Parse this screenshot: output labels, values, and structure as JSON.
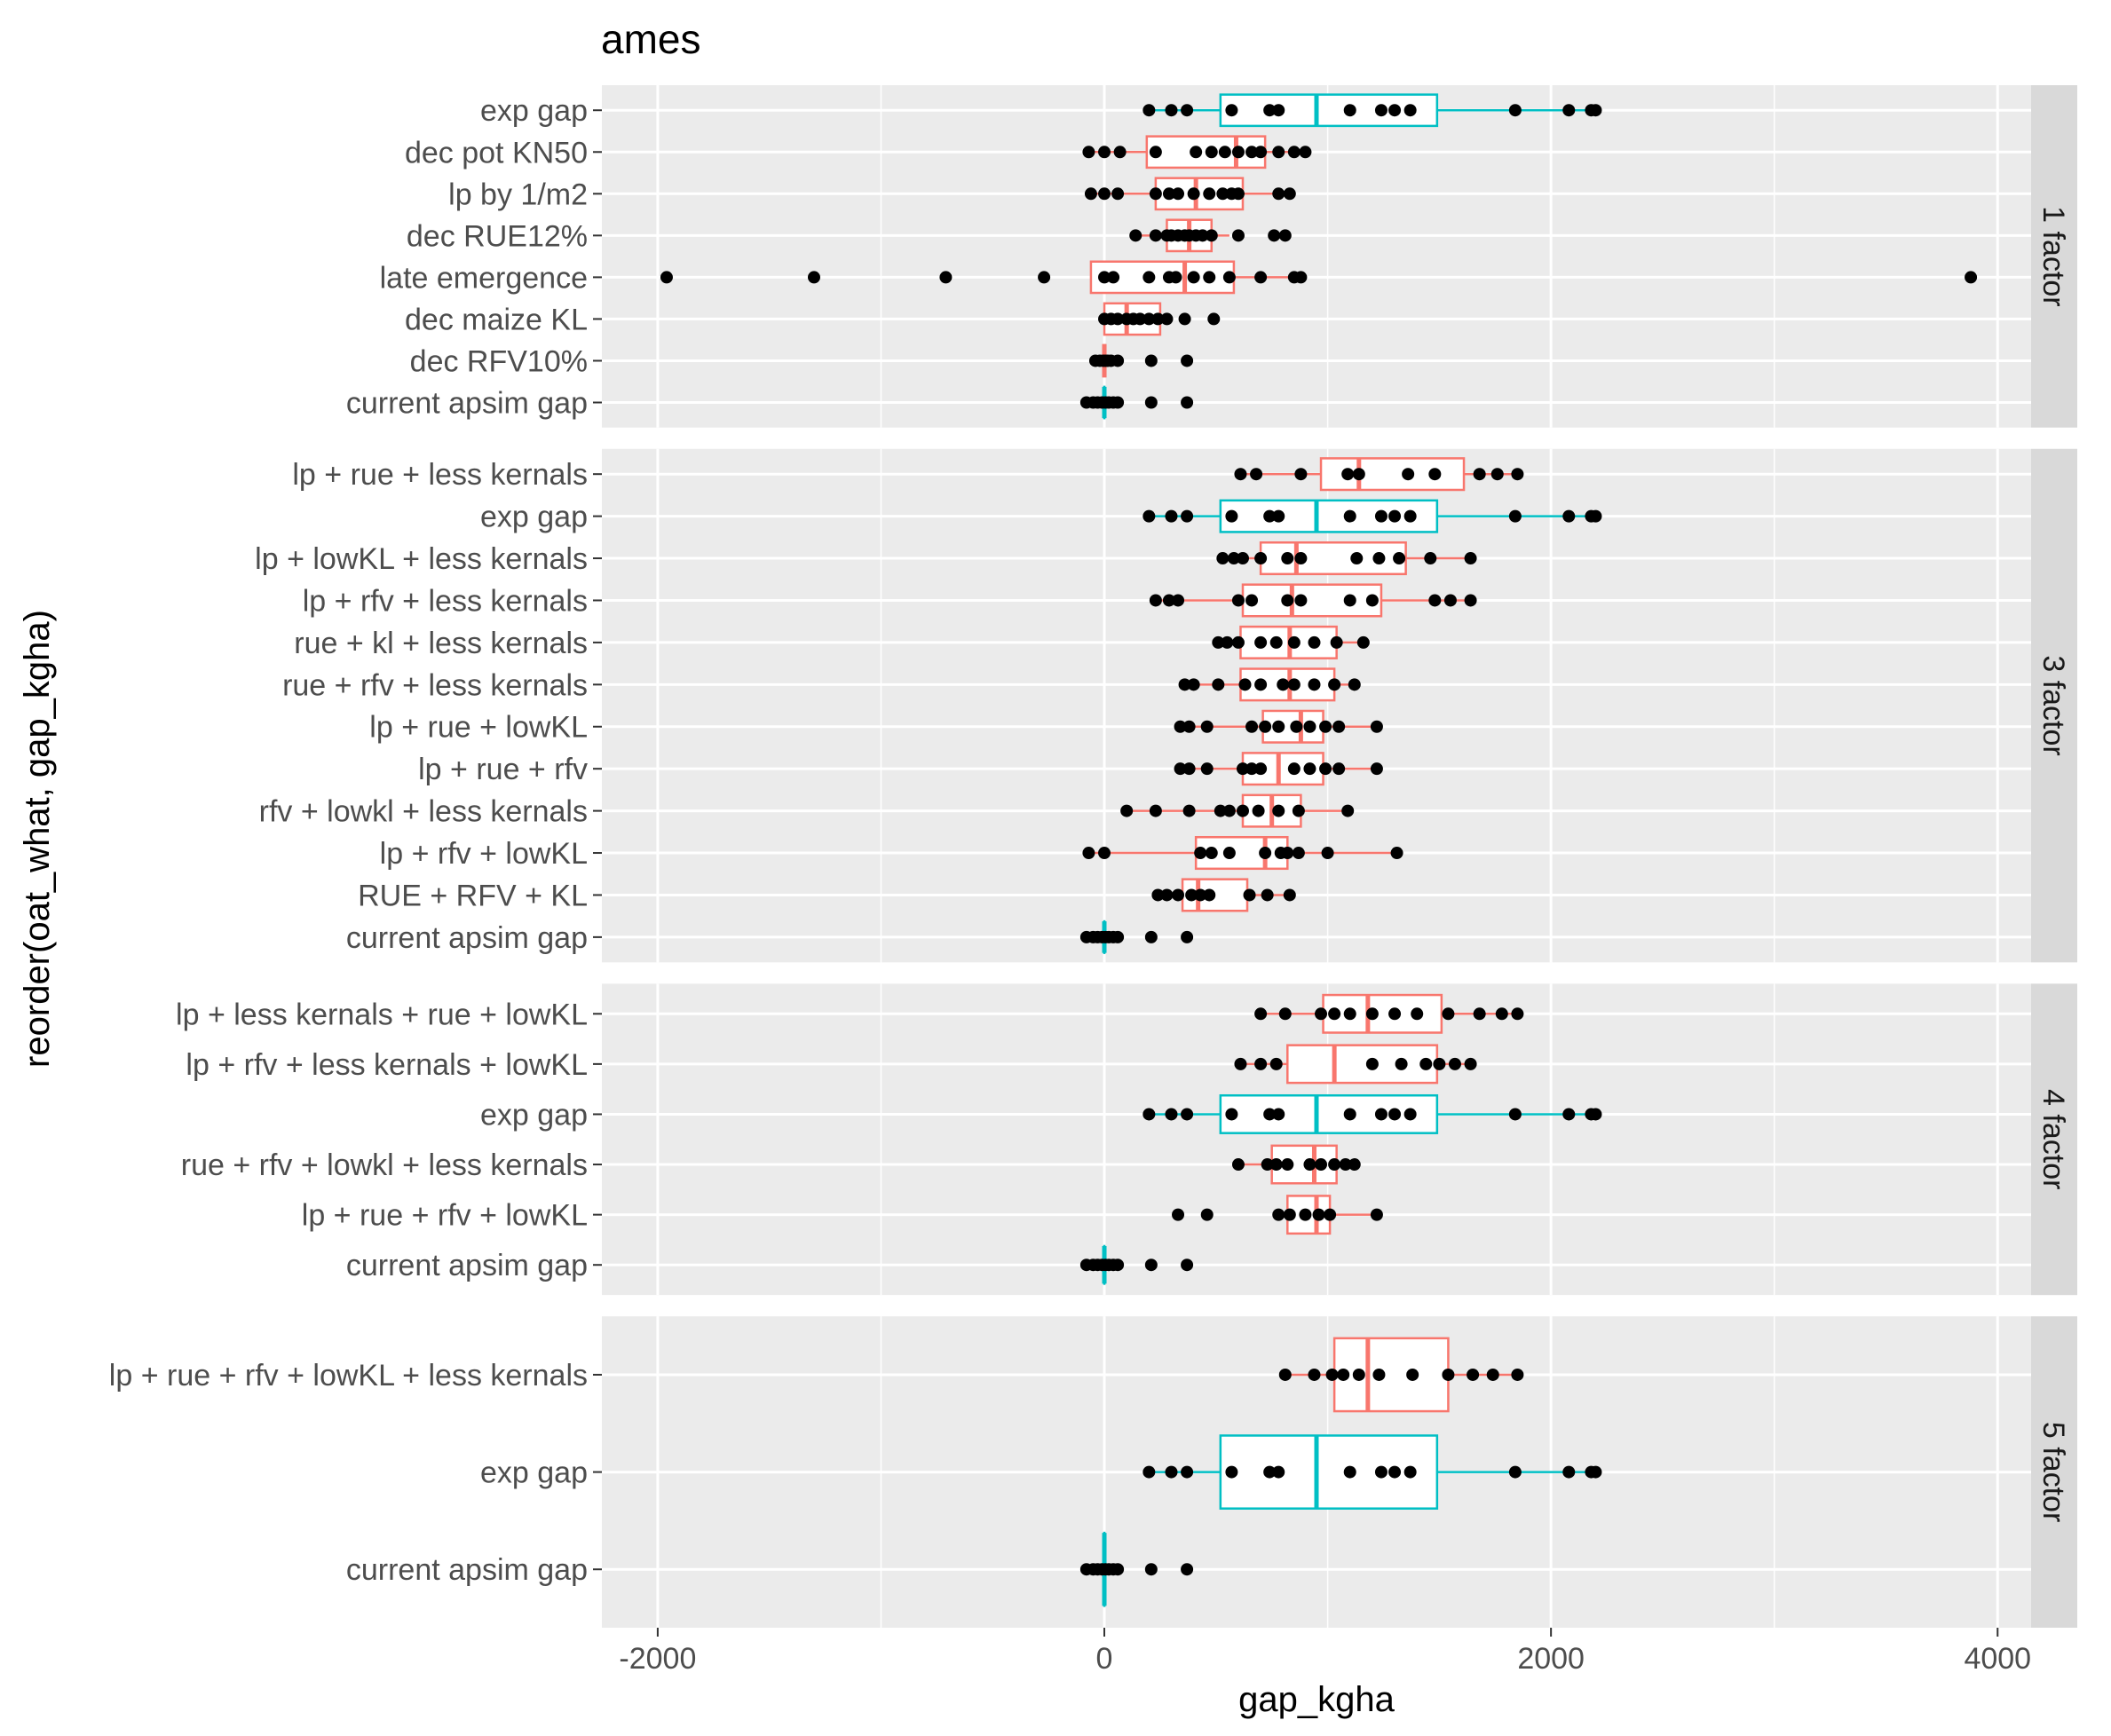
{
  "chart_data": {
    "type": "boxplot",
    "title": "ames",
    "xlabel": "gap_kgha",
    "ylabel": "reorder(oat_what, gap_kgha)",
    "xlim": [
      -2250,
      4150
    ],
    "x_ticks": [
      -2000,
      0,
      2000,
      4000
    ],
    "x_tick_labels": [
      "-2000",
      "0",
      "2000",
      "4000"
    ],
    "grid": true,
    "colors": {
      "salmon": "#F8766D",
      "teal": "#00BFC4",
      "panel_bg": "#EBEBEB",
      "strip_bg": "#D9D9D9",
      "point": "#000000"
    },
    "panels": [
      {
        "strip": "1 factor",
        "categories": [
          {
            "label": "current apsim gap",
            "color": "teal",
            "box": [
              0,
              0,
              0,
              0,
              0
            ],
            "points": [
              -80,
              -50,
              -30,
              -10,
              5,
              20,
              40,
              60,
              210,
              370
            ]
          },
          {
            "label": "dec RFV10%",
            "color": "salmon",
            "box": [
              -10,
              -5,
              0,
              5,
              10
            ],
            "points": [
              -40,
              -20,
              -5,
              5,
              15,
              30,
              60,
              210,
              370
            ]
          },
          {
            "label": "dec maize KL",
            "color": "salmon",
            "box": [
              0,
              0,
              100,
              250,
              280
            ],
            "points": [
              0,
              30,
              60,
              100,
              130,
              160,
              200,
              240,
              280,
              360,
              490
            ]
          },
          {
            "label": "late emergence",
            "color": "salmon",
            "box": [
              -60,
              -60,
              360,
              580,
              900
            ],
            "points": [
              -1960,
              -1300,
              -710,
              -270,
              0,
              40,
              200,
              290,
              320,
              400,
              470,
              560,
              700,
              850,
              880,
              3880
            ]
          },
          {
            "label": "dec RUE12%",
            "color": "salmon",
            "box": [
              140,
              280,
              380,
              480,
              560
            ],
            "points": [
              140,
              230,
              280,
              300,
              330,
              360,
              380,
              410,
              440,
              480,
              600,
              760,
              810
            ]
          },
          {
            "label": "lp by 1/m2",
            "color": "salmon",
            "box": [
              -60,
              230,
              410,
              620,
              830
            ],
            "points": [
              -60,
              0,
              60,
              230,
              290,
              330,
              400,
              470,
              530,
              570,
              600,
              780,
              830
            ]
          },
          {
            "label": "dec pot KN50",
            "color": "salmon",
            "box": [
              -70,
              190,
              590,
              720,
              900
            ],
            "points": [
              -70,
              0,
              70,
              230,
              410,
              480,
              540,
              600,
              660,
              700,
              780,
              850,
              900
            ]
          },
          {
            "label": "exp gap",
            "color": "teal",
            "box": [
              200,
              520,
              950,
              1490,
              2200
            ],
            "points": [
              200,
              300,
              370,
              570,
              740,
              780,
              1100,
              1240,
              1300,
              1370,
              1840,
              2080,
              2180,
              2200
            ]
          }
        ]
      },
      {
        "strip": "3 factor",
        "categories": [
          {
            "label": "current apsim gap",
            "color": "teal",
            "box": [
              0,
              0,
              0,
              0,
              0
            ],
            "points": [
              -80,
              -50,
              -30,
              -10,
              5,
              20,
              40,
              60,
              210,
              370
            ]
          },
          {
            "label": "RUE + RFV + KL",
            "color": "salmon",
            "box": [
              240,
              350,
              420,
              640,
              830
            ],
            "points": [
              240,
              280,
              330,
              390,
              430,
              470,
              650,
              730,
              830
            ]
          },
          {
            "label": "lp + rfv + lowKL",
            "color": "salmon",
            "box": [
              -70,
              410,
              720,
              820,
              1310
            ],
            "points": [
              -70,
              0,
              430,
              480,
              560,
              720,
              790,
              820,
              870,
              1000,
              1310
            ]
          },
          {
            "label": "rfv + lowkl + less kernals",
            "color": "salmon",
            "box": [
              100,
              620,
              750,
              880,
              1090
            ],
            "points": [
              100,
              230,
              380,
              520,
              560,
              620,
              690,
              780,
              870,
              1090
            ]
          },
          {
            "label": "lp + rue + rfv",
            "color": "salmon",
            "box": [
              340,
              620,
              780,
              980,
              1220
            ],
            "points": [
              340,
              380,
              460,
              620,
              660,
              700,
              850,
              920,
              990,
              1050,
              1220
            ]
          },
          {
            "label": "lp + rue + lowKL",
            "color": "salmon",
            "box": [
              340,
              710,
              880,
              980,
              1220
            ],
            "points": [
              340,
              380,
              460,
              660,
              720,
              780,
              860,
              920,
              990,
              1050,
              1220
            ]
          },
          {
            "label": "rue + rfv + less kernals",
            "color": "salmon",
            "box": [
              360,
              610,
              830,
              1030,
              1120
            ],
            "points": [
              360,
              400,
              510,
              630,
              700,
              800,
              850,
              940,
              1030,
              1120
            ]
          },
          {
            "label": "rue + kl + less kernals",
            "color": "salmon",
            "box": [
              510,
              610,
              830,
              1040,
              1160
            ],
            "points": [
              510,
              550,
              600,
              700,
              770,
              850,
              940,
              1040,
              1160
            ]
          },
          {
            "label": "lp + rfv + less kernals",
            "color": "salmon",
            "box": [
              230,
              620,
              840,
              1240,
              1640
            ],
            "points": [
              230,
              290,
              330,
              600,
              660,
              820,
              880,
              1100,
              1200,
              1480,
              1550,
              1640
            ]
          },
          {
            "label": "lp + lowKL + less kernals",
            "color": "salmon",
            "box": [
              530,
              700,
              860,
              1350,
              1640
            ],
            "points": [
              530,
              580,
              620,
              700,
              820,
              880,
              1130,
              1230,
              1320,
              1460,
              1640
            ]
          },
          {
            "label": "exp gap",
            "color": "teal",
            "box": [
              200,
              520,
              950,
              1490,
              2200
            ],
            "points": [
              200,
              300,
              370,
              570,
              740,
              780,
              1100,
              1240,
              1300,
              1370,
              1840,
              2080,
              2180,
              2200
            ]
          },
          {
            "label": "lp + rue + less kernals",
            "color": "salmon",
            "box": [
              610,
              970,
              1140,
              1610,
              1850
            ],
            "points": [
              610,
              680,
              880,
              1090,
              1140,
              1360,
              1480,
              1680,
              1760,
              1850
            ]
          }
        ]
      },
      {
        "strip": "4 factor",
        "categories": [
          {
            "label": "current apsim gap",
            "color": "teal",
            "box": [
              0,
              0,
              0,
              0,
              0
            ],
            "points": [
              -80,
              -50,
              -30,
              -10,
              5,
              20,
              40,
              60,
              210,
              370
            ]
          },
          {
            "label": "lp + rue + rfv + lowKL",
            "color": "salmon",
            "box": [
              780,
              820,
              950,
              1010,
              1220
            ],
            "points": [
              330,
              460,
              780,
              830,
              900,
              960,
              1010,
              1220
            ]
          },
          {
            "label": "rue + rfv + lowkl + less kernals",
            "color": "salmon",
            "box": [
              600,
              750,
              940,
              1040,
              1120
            ],
            "points": [
              600,
              730,
              770,
              820,
              920,
              970,
              1030,
              1080,
              1120
            ]
          },
          {
            "label": "exp gap",
            "color": "teal",
            "box": [
              200,
              520,
              950,
              1490,
              2200
            ],
            "points": [
              200,
              300,
              370,
              570,
              740,
              780,
              1100,
              1240,
              1300,
              1370,
              1840,
              2080,
              2180,
              2200
            ]
          },
          {
            "label": "lp + rfv + less kernals + lowKL",
            "color": "salmon",
            "box": [
              610,
              820,
              1030,
              1490,
              1640
            ],
            "points": [
              610,
              700,
              770,
              1200,
              1330,
              1440,
              1500,
              1570,
              1640
            ]
          },
          {
            "label": "lp  + less kernals + rue + lowKL",
            "color": "salmon",
            "box": [
              700,
              980,
              1180,
              1510,
              1850
            ],
            "points": [
              700,
              810,
              970,
              1030,
              1100,
              1200,
              1300,
              1400,
              1540,
              1680,
              1780,
              1850
            ]
          }
        ]
      },
      {
        "strip": "5 factor",
        "categories": [
          {
            "label": "current apsim gap",
            "color": "teal",
            "box": [
              0,
              0,
              0,
              0,
              0
            ],
            "points": [
              -80,
              -50,
              -30,
              -10,
              5,
              20,
              40,
              60,
              210,
              370
            ]
          },
          {
            "label": "exp gap",
            "color": "teal",
            "box": [
              200,
              520,
              950,
              1490,
              2200
            ],
            "points": [
              200,
              300,
              370,
              570,
              740,
              780,
              1100,
              1240,
              1300,
              1370,
              1840,
              2080,
              2180,
              2200
            ]
          },
          {
            "label": "lp + rue + rfv + lowKL + less kernals",
            "color": "salmon",
            "box": [
              810,
              1030,
              1180,
              1540,
              1850
            ],
            "points": [
              810,
              940,
              1020,
              1070,
              1140,
              1230,
              1380,
              1540,
              1650,
              1740,
              1850
            ]
          }
        ]
      }
    ]
  }
}
